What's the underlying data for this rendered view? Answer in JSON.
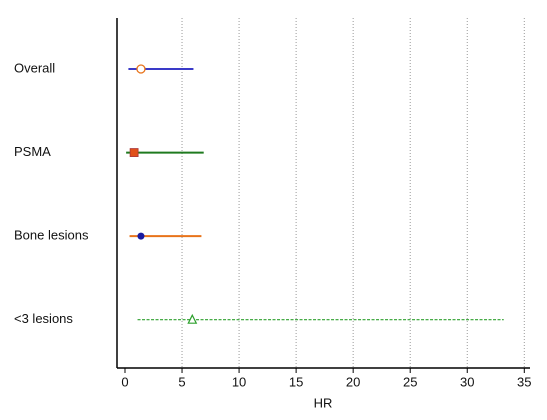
{
  "chart_data": {
    "type": "forest",
    "x_label": "HR",
    "categories": [
      "Overall",
      "PSMA",
      "Bone lesions",
      "<3 lesions"
    ],
    "values": [
      1.4,
      0.8,
      1.4,
      5.9
    ],
    "lower": [
      0.3,
      0.1,
      0.4,
      1.1
    ],
    "upper": [
      6.0,
      6.9,
      6.7,
      33.2
    ],
    "line_colors": [
      "#3a3ac8",
      "#1f7a1f",
      "#e8731a",
      "#2ea02e"
    ],
    "line_styles": [
      "solid",
      "solid",
      "solid",
      "dashed"
    ],
    "markers": [
      "circle-open",
      "square",
      "circle",
      "triangle-open"
    ],
    "marker_colors": [
      "#e8731a",
      "#e0501a",
      "#1a1aa0",
      "#2ea02e"
    ],
    "xlim": [
      -0.7,
      35.5
    ],
    "xticks": [
      0,
      5,
      10,
      15,
      20,
      25,
      30,
      35
    ],
    "grid": true
  }
}
